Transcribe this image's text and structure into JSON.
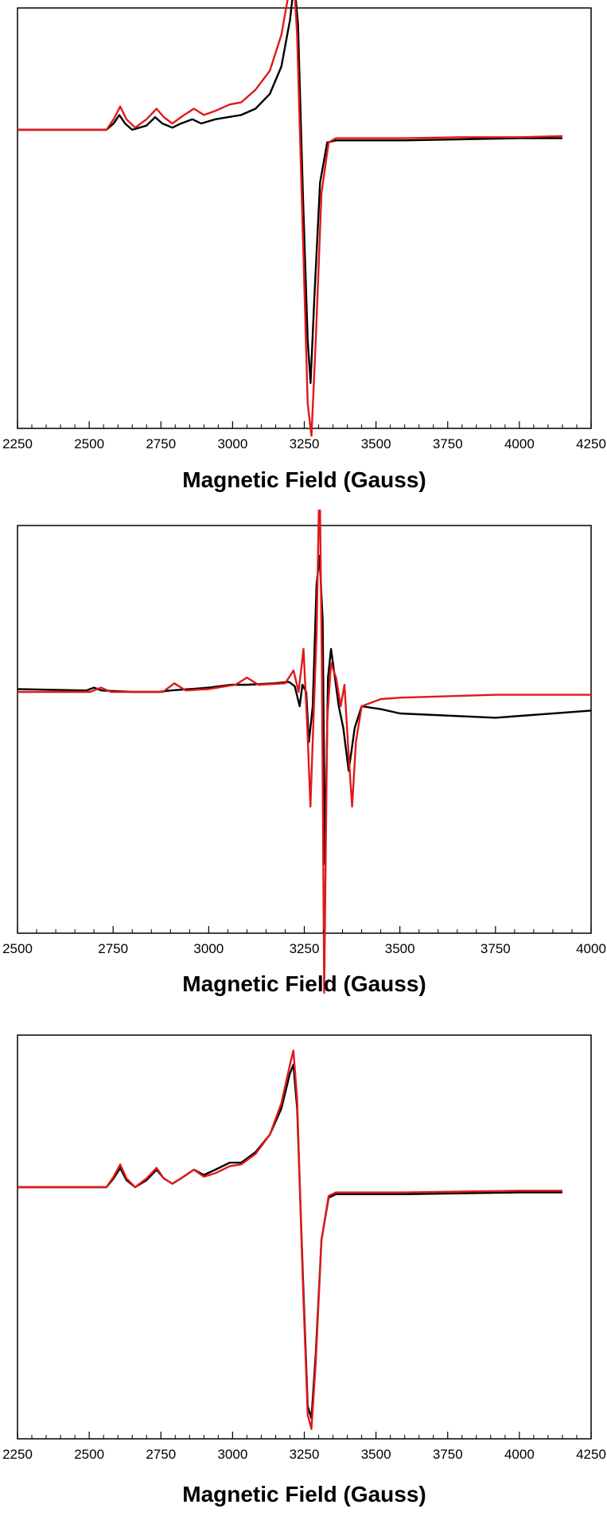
{
  "chart_data": [
    {
      "type": "line",
      "xlabel": "Magnetic Field (Gauss)",
      "xlim": [
        2250,
        4250
      ],
      "xticks": [
        2250,
        2500,
        2750,
        3000,
        3250,
        3500,
        3750,
        4000,
        4250
      ],
      "y_ticks_shown": false,
      "colors": {
        "black": "#000000",
        "red": "#e0191b"
      },
      "series": [
        {
          "color": "black",
          "x": [
            2250,
            2560,
            2585,
            2605,
            2625,
            2650,
            2700,
            2730,
            2755,
            2790,
            2820,
            2860,
            2890,
            2940,
            2985,
            3030,
            3080,
            3130,
            3170,
            3200,
            3215,
            3228,
            3245,
            3262,
            3272,
            3285,
            3305,
            3330,
            3360,
            3400,
            3600,
            3800,
            4000,
            4150
          ],
          "y": [
            0.0,
            0.0,
            0.03,
            0.07,
            0.03,
            0.0,
            0.02,
            0.06,
            0.03,
            0.01,
            0.03,
            0.05,
            0.03,
            0.05,
            0.06,
            0.07,
            0.1,
            0.17,
            0.3,
            0.52,
            0.7,
            0.5,
            -0.3,
            -1.0,
            -1.2,
            -0.8,
            -0.25,
            -0.06,
            -0.05,
            -0.05,
            -0.05,
            -0.045,
            -0.04,
            -0.04
          ]
        },
        {
          "color": "red",
          "x": [
            2250,
            2560,
            2585,
            2608,
            2630,
            2660,
            2700,
            2735,
            2760,
            2790,
            2820,
            2865,
            2900,
            2940,
            2990,
            3030,
            3080,
            3130,
            3170,
            3200,
            3212,
            3225,
            3245,
            3262,
            3275,
            3290,
            3310,
            3335,
            3360,
            3400,
            3600,
            3800,
            4000,
            4150
          ],
          "y": [
            0.0,
            0.0,
            0.05,
            0.11,
            0.05,
            0.01,
            0.05,
            0.1,
            0.06,
            0.03,
            0.06,
            0.1,
            0.07,
            0.09,
            0.12,
            0.13,
            0.19,
            0.28,
            0.45,
            0.68,
            0.75,
            0.45,
            -0.5,
            -1.3,
            -1.45,
            -1.0,
            -0.3,
            -0.06,
            -0.04,
            -0.04,
            -0.04,
            -0.035,
            -0.035,
            -0.03
          ]
        }
      ]
    },
    {
      "type": "line",
      "xlabel": "Magnetic Field (Gauss)",
      "xlim": [
        2500,
        4000
      ],
      "xticks": [
        2500,
        2750,
        3000,
        3250,
        3500,
        3750,
        4000
      ],
      "y_ticks_shown": false,
      "colors": {
        "black": "#000000",
        "red": "#e0191b"
      },
      "series": [
        {
          "color": "black",
          "x": [
            2500,
            2680,
            2700,
            2720,
            2800,
            2870,
            2900,
            3000,
            3060,
            3100,
            3170,
            3210,
            3225,
            3238,
            3245,
            3255,
            3262,
            3272,
            3282,
            3290,
            3298,
            3304,
            3312,
            3320,
            3330,
            3340,
            3352,
            3366,
            3382,
            3400,
            3450,
            3500,
            3750,
            4000
          ],
          "y": [
            0.02,
            0.01,
            0.03,
            0.01,
            0.0,
            0.0,
            0.01,
            0.03,
            0.05,
            0.05,
            0.06,
            0.07,
            0.04,
            -0.1,
            0.05,
            0.0,
            -0.35,
            -0.1,
            0.75,
            0.95,
            0.5,
            -1.2,
            0.1,
            0.3,
            0.1,
            -0.1,
            -0.25,
            -0.55,
            -0.25,
            -0.1,
            -0.12,
            -0.15,
            -0.18,
            -0.13
          ]
        },
        {
          "color": "red",
          "x": [
            2500,
            2690,
            2718,
            2745,
            2800,
            2880,
            2910,
            2940,
            3000,
            3070,
            3100,
            3130,
            3200,
            3222,
            3235,
            3248,
            3258,
            3266,
            3274,
            3282,
            3290,
            3296,
            3302,
            3310,
            3320,
            3333,
            3345,
            3355,
            3365,
            3375,
            3385,
            3400,
            3450,
            3500,
            3750,
            4000
          ],
          "y": [
            0.0,
            0.0,
            0.03,
            0.0,
            0.0,
            0.0,
            0.06,
            0.01,
            0.02,
            0.05,
            0.1,
            0.05,
            0.06,
            0.15,
            0.0,
            0.3,
            -0.25,
            -0.8,
            -0.2,
            0.4,
            1.55,
            0.2,
            -2.1,
            -0.2,
            0.2,
            0.1,
            -0.1,
            0.05,
            -0.4,
            -0.8,
            -0.35,
            -0.1,
            -0.05,
            -0.04,
            -0.02,
            -0.02
          ]
        }
      ]
    },
    {
      "type": "line",
      "xlabel": "Magnetic Field (Gauss)",
      "xlim": [
        2250,
        4250
      ],
      "xticks": [
        2250,
        2500,
        2750,
        3000,
        3250,
        3500,
        3750,
        4000,
        4250
      ],
      "y_ticks_shown": false,
      "colors": {
        "black": "#000000",
        "red": "#e0191b"
      },
      "series": [
        {
          "color": "black",
          "x": [
            2250,
            2560,
            2585,
            2608,
            2630,
            2660,
            2700,
            2735,
            2760,
            2790,
            2820,
            2865,
            2900,
            2940,
            2990,
            3030,
            3080,
            3130,
            3170,
            3200,
            3212,
            3225,
            3245,
            3262,
            3275,
            3290,
            3310,
            3335,
            3360,
            3400,
            3600,
            3800,
            4000,
            4150
          ],
          "y": [
            0.0,
            0.0,
            0.05,
            0.11,
            0.04,
            0.0,
            0.04,
            0.1,
            0.05,
            0.02,
            0.05,
            0.1,
            0.07,
            0.1,
            0.14,
            0.14,
            0.2,
            0.3,
            0.45,
            0.65,
            0.7,
            0.45,
            -0.5,
            -1.25,
            -1.32,
            -0.95,
            -0.3,
            -0.06,
            -0.04,
            -0.04,
            -0.04,
            -0.035,
            -0.03,
            -0.03
          ]
        },
        {
          "color": "red",
          "x": [
            2250,
            2560,
            2585,
            2608,
            2630,
            2660,
            2700,
            2735,
            2760,
            2790,
            2820,
            2865,
            2900,
            2940,
            2990,
            3030,
            3080,
            3130,
            3170,
            3200,
            3212,
            3225,
            3245,
            3262,
            3275,
            3290,
            3310,
            3335,
            3360,
            3400,
            3600,
            3800,
            4000,
            4150
          ],
          "y": [
            0.0,
            0.0,
            0.06,
            0.13,
            0.05,
            0.0,
            0.05,
            0.11,
            0.05,
            0.02,
            0.05,
            0.1,
            0.06,
            0.08,
            0.12,
            0.13,
            0.19,
            0.3,
            0.48,
            0.7,
            0.78,
            0.5,
            -0.55,
            -1.3,
            -1.38,
            -1.0,
            -0.3,
            -0.05,
            -0.03,
            -0.03,
            -0.03,
            -0.025,
            -0.02,
            -0.02
          ]
        }
      ]
    }
  ]
}
